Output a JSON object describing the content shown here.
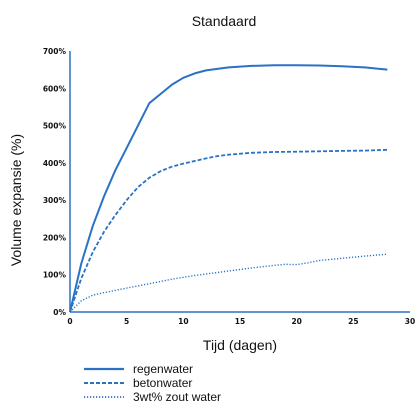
{
  "chart_data": {
    "type": "line",
    "title": "Standaard",
    "xlabel": "Tijd (dagen)",
    "ylabel": "Volume expansie (%)",
    "xlim": [
      0,
      30
    ],
    "ylim": [
      0,
      700
    ],
    "xticks": [
      0,
      5,
      10,
      15,
      20,
      25,
      30
    ],
    "xtick_labels": [
      "0",
      "5",
      "10",
      "15",
      "20",
      "25",
      "30"
    ],
    "yticks": [
      0,
      100,
      200,
      300,
      400,
      500,
      600,
      700
    ],
    "ytick_labels": [
      "0%",
      "100%",
      "200%",
      "300%",
      "400%",
      "500%",
      "600%",
      "700%"
    ],
    "grid": false,
    "legend_position": "bottom-left",
    "color": "#2a72c4",
    "series": [
      {
        "name": "regenwater",
        "style": "solid",
        "x": [
          0,
          1,
          2,
          3,
          4,
          5,
          6,
          7,
          8,
          9,
          10,
          11,
          12,
          13,
          14,
          16,
          18,
          20,
          22,
          24,
          26,
          28
        ],
        "y": [
          0,
          130,
          230,
          310,
          380,
          440,
          500,
          560,
          585,
          610,
          628,
          640,
          648,
          652,
          656,
          660,
          662,
          662,
          661,
          659,
          656,
          650
        ]
      },
      {
        "name": "betonwater",
        "style": "dashed",
        "x": [
          0,
          1,
          2,
          3,
          4,
          5,
          6,
          7,
          8,
          9,
          10,
          11,
          12,
          13,
          14,
          16,
          18,
          20,
          22,
          24,
          26,
          28
        ],
        "y": [
          0,
          90,
          160,
          215,
          260,
          300,
          335,
          360,
          378,
          390,
          398,
          405,
          412,
          418,
          422,
          427,
          429,
          430,
          431,
          432,
          433,
          435
        ]
      },
      {
        "name": "3wt% zout water",
        "style": "dotted",
        "x": [
          0,
          1,
          2,
          3,
          4,
          5,
          6,
          7,
          8,
          9,
          10,
          11,
          12,
          13,
          14,
          16,
          18,
          19,
          20,
          21,
          22,
          24,
          26,
          28
        ],
        "y": [
          0,
          30,
          45,
          52,
          58,
          64,
          70,
          76,
          82,
          88,
          93,
          98,
          102,
          106,
          110,
          118,
          125,
          128,
          127,
          132,
          138,
          144,
          150,
          155
        ]
      }
    ]
  }
}
